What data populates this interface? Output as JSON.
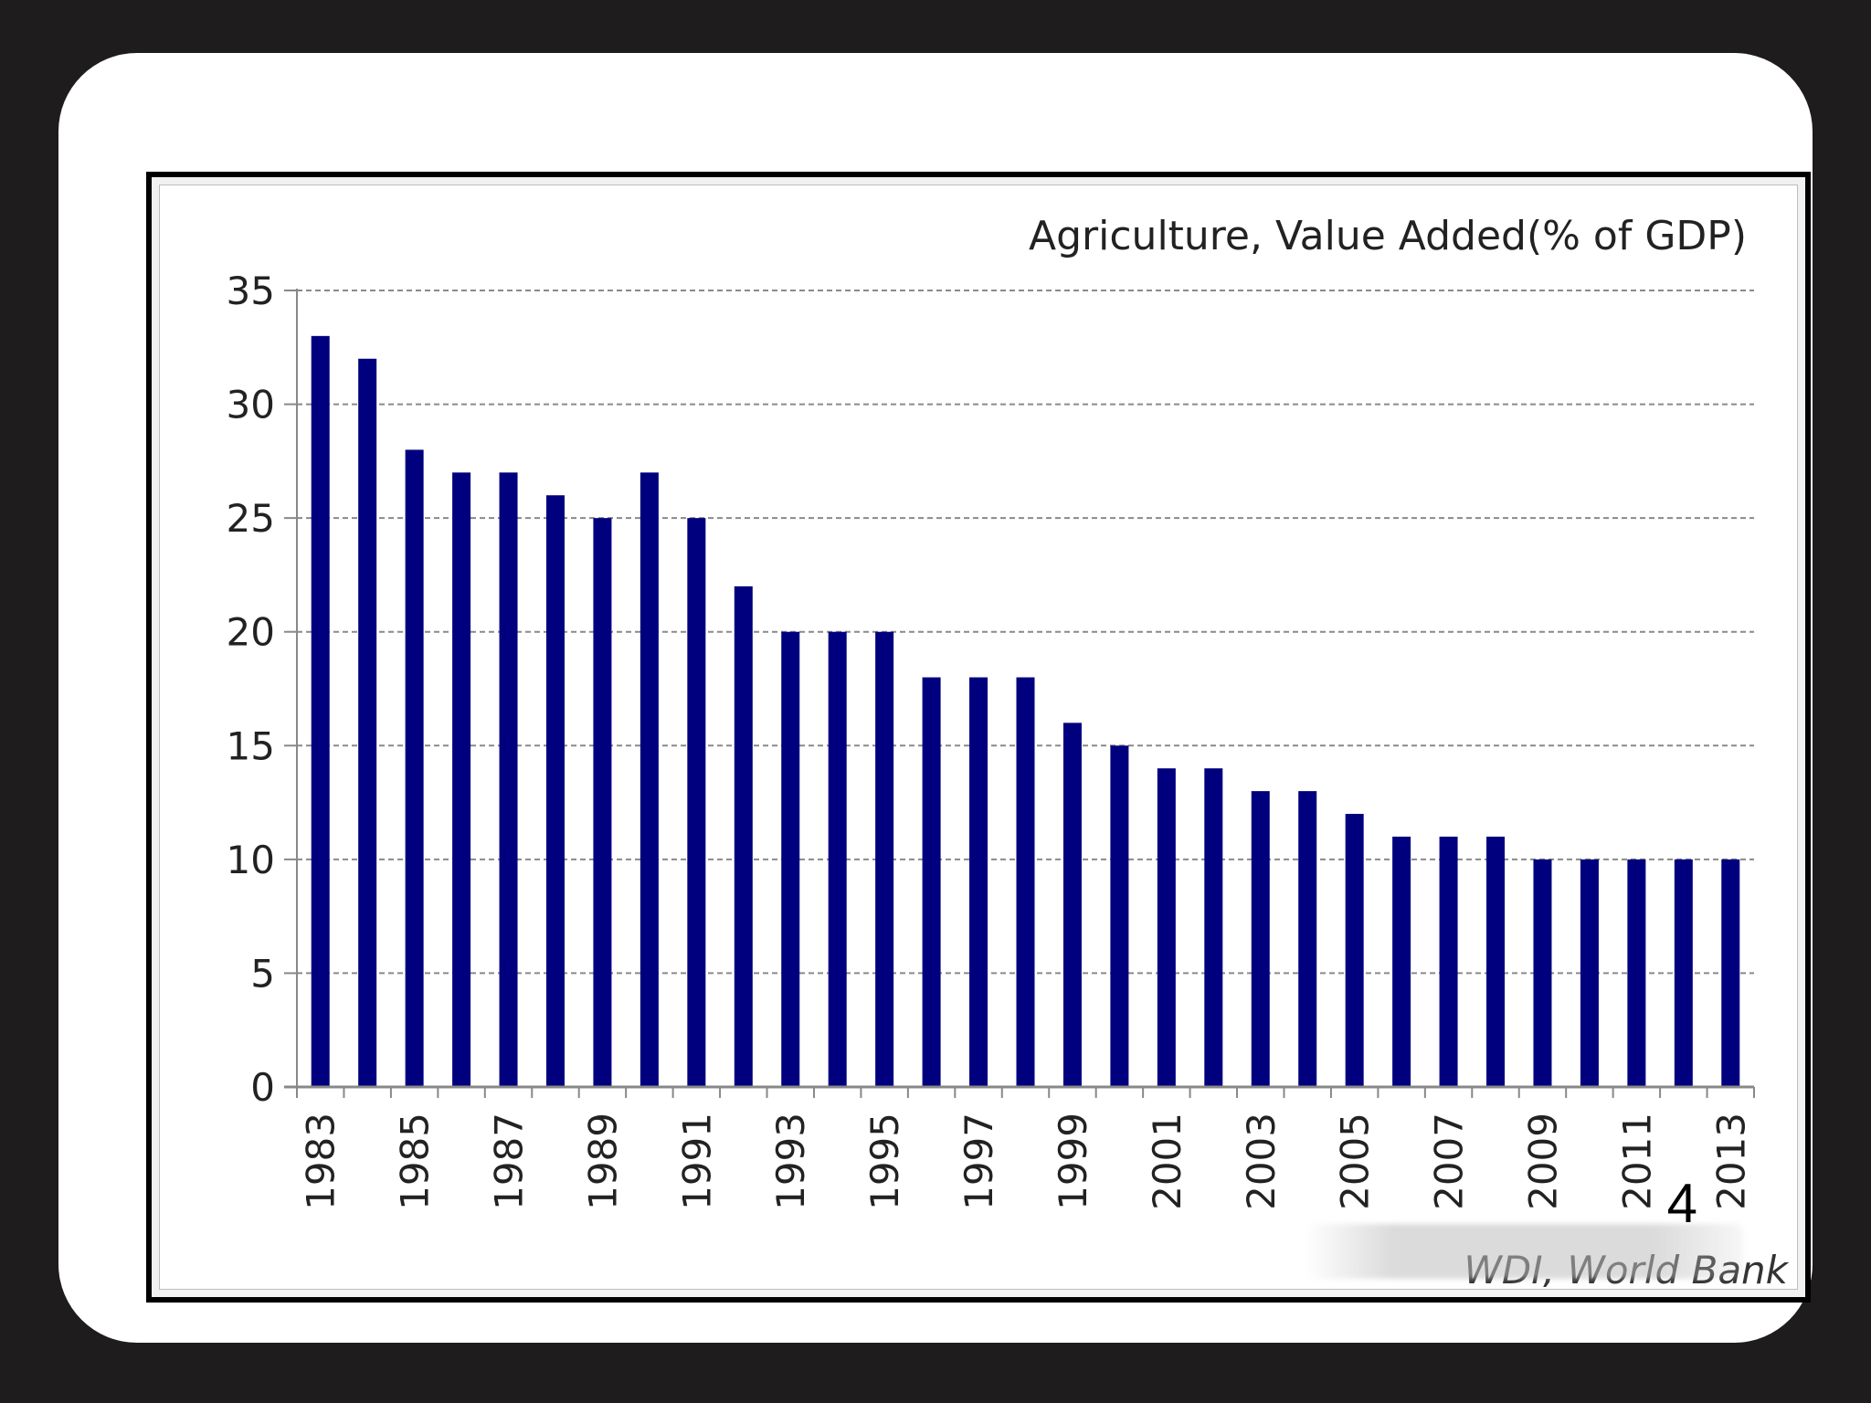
{
  "slide": {
    "page_number": "4"
  },
  "chart_data": {
    "type": "bar",
    "title": "Agriculture, Value Added(% of GDP)",
    "source": "WDI, World Bank",
    "xlabel": "",
    "ylabel": "",
    "ylim": [
      0,
      35
    ],
    "yticks": [
      0,
      5,
      10,
      15,
      20,
      25,
      30,
      35
    ],
    "grid": true,
    "color": "#00007f",
    "categories": [
      "1983",
      "1984",
      "1985",
      "1986",
      "1987",
      "1988",
      "1989",
      "1990",
      "1991",
      "1992",
      "1993",
      "1994",
      "1995",
      "1996",
      "1997",
      "1998",
      "1999",
      "2000",
      "2001",
      "2002",
      "2003",
      "2004",
      "2005",
      "2006",
      "2007",
      "2008",
      "2009",
      "2010",
      "2011",
      "2012",
      "2013"
    ],
    "xtick_labels": [
      "1983",
      "1985",
      "1987",
      "1989",
      "1991",
      "1993",
      "1995",
      "1997",
      "1999",
      "2001",
      "2003",
      "2005",
      "2007",
      "2009",
      "2011",
      "2013"
    ],
    "values": [
      33,
      32,
      28,
      27,
      27,
      26,
      25,
      27,
      25,
      22,
      20,
      20,
      20,
      18,
      18,
      18,
      16,
      15,
      14,
      14,
      13,
      13,
      12,
      11,
      11,
      11,
      10,
      10,
      10,
      10,
      10
    ]
  }
}
